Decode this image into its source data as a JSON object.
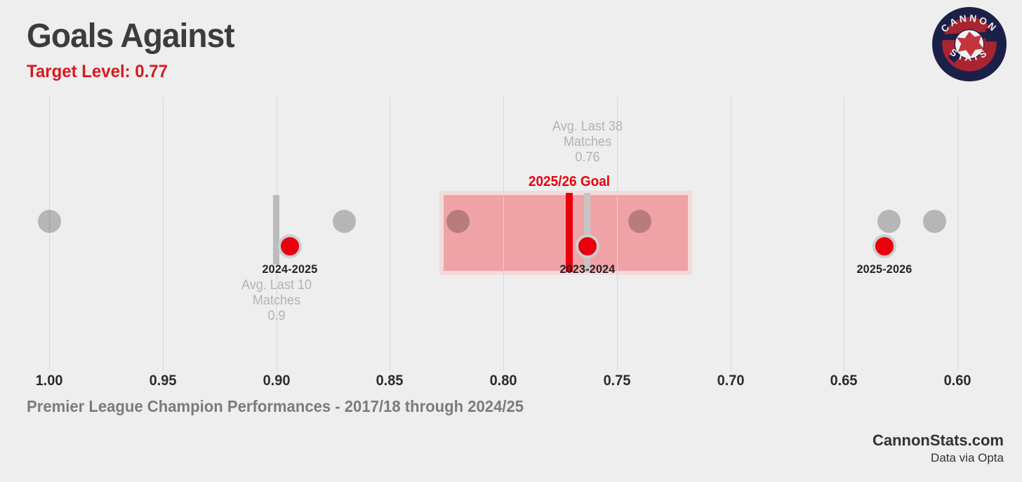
{
  "header": {
    "title": "Goals Against",
    "subtitle": "Target Level: 0.77"
  },
  "logo": {
    "top_text": "CANNON",
    "bottom_text": "STATS",
    "navy": "#1b2048",
    "red": "#a92431",
    "star_red": "#c5333c",
    "white": "#f4f2f2"
  },
  "footer": {
    "caption": "Premier League Champion Performances - 2017/18 through 2024/25",
    "site": "CannonStats.com",
    "source": "Data via Opta"
  },
  "colors": {
    "background": "#efeeee",
    "title_text": "#3c3c3c",
    "accent_red": "#e8000d",
    "subtitle_red": "#d51a21",
    "gridline": "#d8d7d7",
    "champion_gray": "#c3c2c2",
    "dot_ring": "#cfcfcf",
    "gray_text": "#b3b2b2",
    "band_fill": "#efa3a6",
    "band_border": "#f3dbdc"
  },
  "chart_data": {
    "type": "scatter",
    "title": "Goals Against",
    "subtitle_target_level": "0.77",
    "x_axis": {
      "xlim": [
        1.0,
        0.6
      ],
      "reversed": true,
      "tick_step": 0.05,
      "ticks": [
        "1.00",
        "0.95",
        "0.90",
        "0.85",
        "0.80",
        "0.75",
        "0.70",
        "0.65",
        "0.60"
      ],
      "tick_values": [
        1.0,
        0.95,
        0.9,
        0.85,
        0.8,
        0.75,
        0.7,
        0.65,
        0.6
      ]
    },
    "champion_points": {
      "legend": "Premier League Champion Performances - 2017/18 through 2024/25",
      "values": [
        1.0,
        0.87,
        0.82,
        0.74,
        0.63,
        0.61
      ]
    },
    "arsenal_seasons": [
      {
        "label": "2024-2025",
        "value": 0.894
      },
      {
        "label": "2023-2024",
        "value": 0.763
      },
      {
        "label": "2025-2026",
        "value": 0.632
      }
    ],
    "reference_lines": [
      {
        "id": "avg-last-10",
        "value": 0.9,
        "bar_color": "#bdbcbc",
        "label_lines": [
          "Avg. Last 10",
          "Matches",
          "0.9"
        ],
        "label_color": "#b3b2b2",
        "bold": false
      },
      {
        "id": "avg-last-38",
        "value": 0.763,
        "bar_color": "#c6c5c5",
        "label_lines": [
          "Avg. Last 38",
          "Matches",
          "0.76"
        ],
        "label_color": "#b3b2b2",
        "bold": false
      },
      {
        "id": "goal-2025-26",
        "value": 0.771,
        "bar_color": "#e8000d",
        "label_lines": [
          "2025/26 Goal"
        ],
        "label_color": "#e8000d",
        "bold": true
      }
    ],
    "target_band": {
      "from": 0.826,
      "to": 0.719
    }
  }
}
